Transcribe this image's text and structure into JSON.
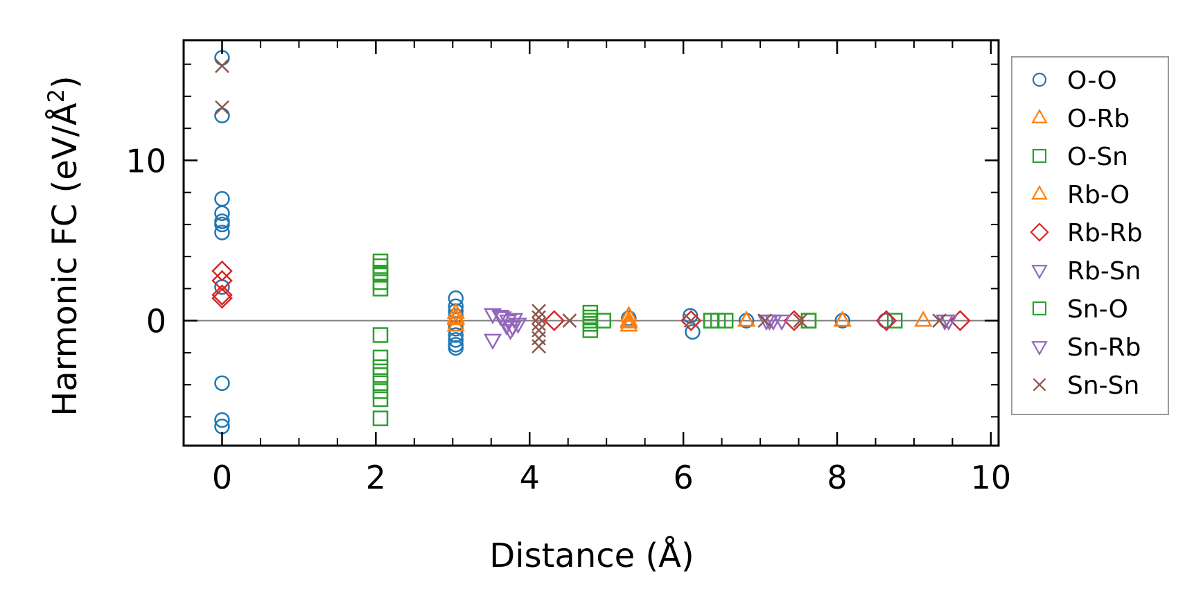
{
  "chart_data": {
    "type": "scatter",
    "xlabel": "Distance (Å)",
    "ylabel_main": "Harmonic FC (eV/Å",
    "ylabel_sup": "2",
    "ylabel_end": ")",
    "xlim": [
      -0.5,
      10.1
    ],
    "ylim": [
      -7.8,
      17.5
    ],
    "x_ticks": [
      0,
      2,
      4,
      6,
      8,
      10
    ],
    "x_tick_labels": [
      "0",
      "2",
      "4",
      "6",
      "8",
      "10"
    ],
    "x_minor_ticks": [
      -0.5,
      0.5,
      1,
      1.5,
      2.5,
      3,
      3.5,
      4.5,
      5,
      5.5,
      6.5,
      7,
      7.5,
      8.5,
      9,
      9.5
    ],
    "y_ticks": [
      0,
      10
    ],
    "y_tick_labels": [
      "0",
      "10"
    ],
    "y_minor_ticks": [
      -6,
      -4,
      -2,
      2,
      4,
      6,
      8,
      12,
      14,
      16
    ],
    "zero_line": true,
    "grid": false,
    "legend_position": "outside-right",
    "series": [
      {
        "name": "O-O",
        "marker": "circle",
        "color": "#1f77b4",
        "points": [
          [
            0,
            16.4
          ],
          [
            0,
            12.8
          ],
          [
            0,
            7.6
          ],
          [
            0,
            6.7
          ],
          [
            0,
            6.2
          ],
          [
            0,
            6.0
          ],
          [
            0,
            5.5
          ],
          [
            0,
            2.1
          ],
          [
            0,
            -3.9
          ],
          [
            0,
            -6.2
          ],
          [
            0,
            -6.6
          ],
          [
            3.04,
            1.4
          ],
          [
            3.04,
            0.9
          ],
          [
            3.04,
            0.6
          ],
          [
            3.04,
            0.3
          ],
          [
            3.04,
            -0.2
          ],
          [
            3.04,
            -0.5
          ],
          [
            3.04,
            -0.9
          ],
          [
            3.04,
            -1.2
          ],
          [
            3.04,
            -1.5
          ],
          [
            3.04,
            -1.7
          ],
          [
            5.29,
            0.15
          ],
          [
            6.09,
            0.3
          ],
          [
            6.12,
            -0.7
          ],
          [
            6.82,
            0.0
          ],
          [
            8.07,
            0.0
          ],
          [
            8.63,
            0.0
          ]
        ]
      },
      {
        "name": "O-Rb",
        "marker": "triangle-up",
        "color": "#ff7f0e",
        "points": [
          [
            3.04,
            0.5
          ],
          [
            3.04,
            0.2
          ],
          [
            3.04,
            -0.3
          ],
          [
            5.29,
            0.3
          ],
          [
            5.29,
            -0.1
          ],
          [
            5.29,
            -0.3
          ],
          [
            6.82,
            0.0
          ],
          [
            8.07,
            0.0
          ],
          [
            9.12,
            0.0
          ]
        ]
      },
      {
        "name": "O-Sn",
        "marker": "square",
        "color": "#2ca02c",
        "points": [
          [
            2.06,
            3.7
          ],
          [
            2.06,
            3.4
          ],
          [
            2.06,
            2.9
          ],
          [
            2.06,
            2.4
          ],
          [
            2.06,
            2.0
          ],
          [
            2.06,
            -0.9
          ],
          [
            2.06,
            -2.3
          ],
          [
            2.06,
            -2.9
          ],
          [
            2.06,
            -3.4
          ],
          [
            2.06,
            -3.9
          ],
          [
            2.06,
            -4.4
          ],
          [
            2.06,
            -4.9
          ],
          [
            2.06,
            -6.1
          ],
          [
            4.79,
            0.5
          ],
          [
            4.79,
            0.2
          ],
          [
            4.79,
            -0.2
          ],
          [
            4.79,
            -0.6
          ],
          [
            4.96,
            0.0
          ],
          [
            6.36,
            0.0
          ],
          [
            6.45,
            0.0
          ],
          [
            6.55,
            0.0
          ],
          [
            7.63,
            0.0
          ],
          [
            8.75,
            0.0
          ]
        ]
      },
      {
        "name": "Rb-O",
        "marker": "triangle-up",
        "color": "#ff7f0e",
        "points": [
          [
            3.04,
            0.1
          ],
          [
            5.29,
            0.0
          ],
          [
            6.82,
            0.0
          ],
          [
            8.07,
            0.0
          ]
        ]
      },
      {
        "name": "Rb-Rb",
        "marker": "diamond",
        "color": "#d62728",
        "points": [
          [
            0,
            3.1
          ],
          [
            0,
            2.5
          ],
          [
            0,
            1.6
          ],
          [
            0,
            1.4
          ],
          [
            4.32,
            0.0
          ],
          [
            6.1,
            0.0
          ],
          [
            7.44,
            0.0
          ],
          [
            8.64,
            0.0
          ],
          [
            9.6,
            0.0
          ]
        ]
      },
      {
        "name": "Rb-Sn",
        "marker": "triangle-down",
        "color": "#9467bd",
        "points": [
          [
            3.52,
            0.4
          ],
          [
            3.52,
            -1.2
          ],
          [
            3.65,
            0.2
          ],
          [
            3.7,
            -0.3
          ],
          [
            3.75,
            -0.6
          ],
          [
            3.8,
            0.1
          ],
          [
            3.85,
            -0.2
          ],
          [
            7.08,
            0.0
          ],
          [
            7.17,
            0.0
          ],
          [
            7.28,
            0.0
          ],
          [
            9.45,
            0.0
          ]
        ]
      },
      {
        "name": "Sn-O",
        "marker": "square",
        "color": "#2ca02c",
        "points": [
          [
            2.06,
            3.0
          ],
          [
            4.79,
            0.0
          ],
          [
            6.36,
            0.0
          ],
          [
            7.63,
            0.0
          ]
        ]
      },
      {
        "name": "Sn-Rb",
        "marker": "triangle-down",
        "color": "#9467bd",
        "points": [
          [
            3.62,
            0.3
          ],
          [
            3.72,
            0.0
          ],
          [
            3.78,
            -0.4
          ],
          [
            7.12,
            0.0
          ],
          [
            9.4,
            0.0
          ]
        ]
      },
      {
        "name": "Sn-Sn",
        "marker": "x",
        "color": "#8c564b",
        "points": [
          [
            0,
            15.9
          ],
          [
            0,
            13.3
          ],
          [
            4.12,
            0.6
          ],
          [
            4.12,
            0.2
          ],
          [
            4.12,
            -0.2
          ],
          [
            4.12,
            -0.6
          ],
          [
            4.12,
            -1.1
          ],
          [
            4.12,
            -1.6
          ],
          [
            4.52,
            0.0
          ],
          [
            6.1,
            0.0
          ],
          [
            7.06,
            0.0
          ],
          [
            7.52,
            0.0
          ],
          [
            9.33,
            0.0
          ]
        ]
      }
    ]
  }
}
